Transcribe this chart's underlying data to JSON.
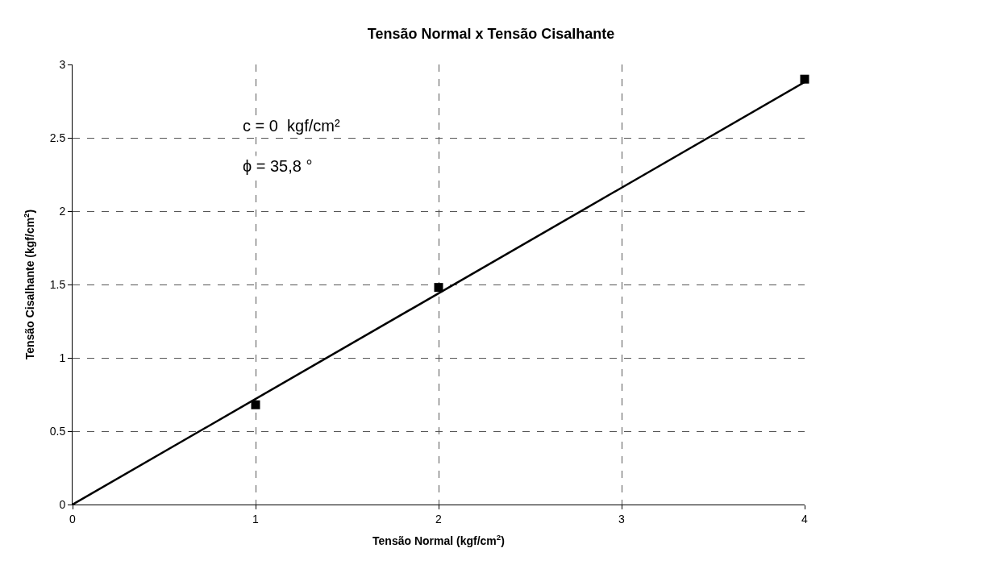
{
  "chart_data": {
    "type": "scatter",
    "title": "Tensão Normal x Tensão Cisalhante",
    "xlabel": "Tensão Normal (kgf/cm$^{2}$)",
    "ylabel": "Tensão Cisalhante (kgf/cm$^{2}$)",
    "xlim": [
      0,
      4
    ],
    "ylim": [
      0,
      3
    ],
    "xticks": [
      0,
      1,
      2,
      3,
      4
    ],
    "yticks": [
      0,
      0.5,
      1,
      1.5,
      2,
      2.5,
      3
    ],
    "grid": true,
    "series": [
      {
        "x": [
          1,
          2,
          4
        ],
        "values": [
          0.68,
          1.48,
          2.9
        ],
        "color": "#000000",
        "marker": "square"
      },
      {
        "type": "line",
        "x": [
          0,
          4
        ],
        "values": [
          0,
          2.88
        ],
        "color": "#000000",
        "marker": "none",
        "line_style": "solid"
      }
    ],
    "annotations": [
      "c = 0  kgf/cm²",
      "ϕ = 35,8 °"
    ]
  }
}
